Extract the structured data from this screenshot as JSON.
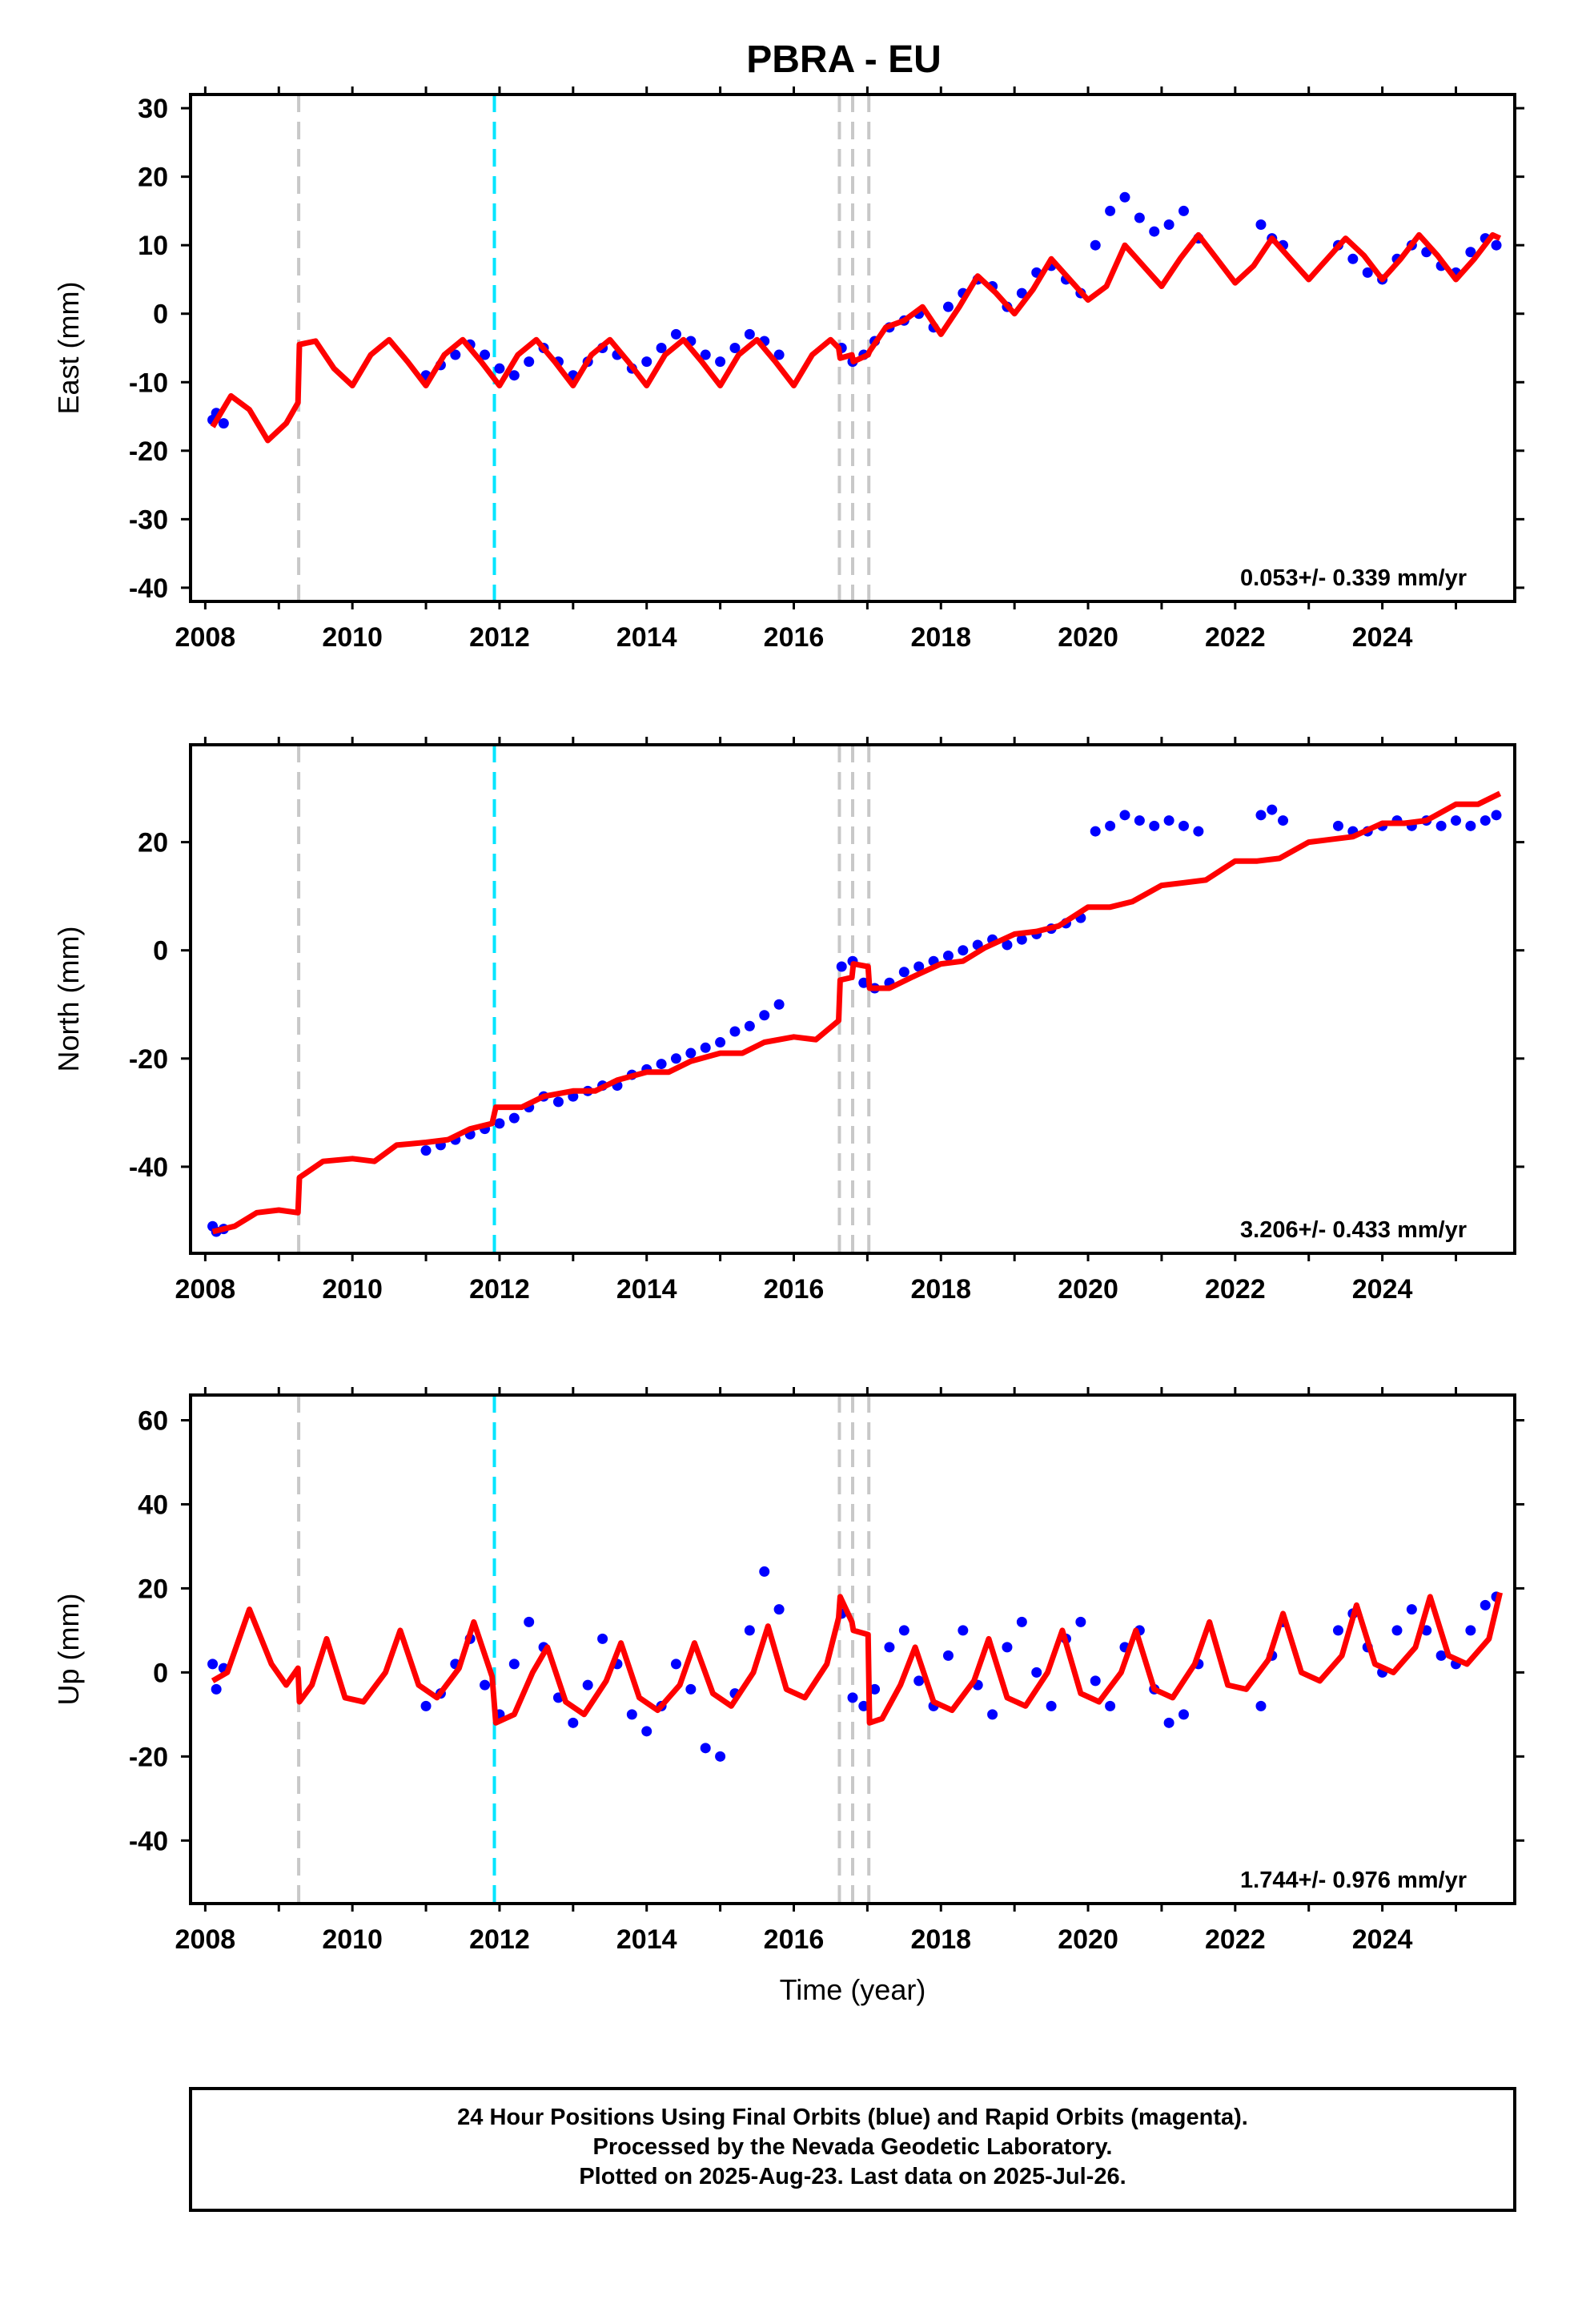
{
  "figure": {
    "title": "PBRA - EU",
    "notes": [
      "24 Hour Positions Using Final Orbits (blue) and Rapid Orbits (magenta).",
      "Processed by the Nevada Geodetic Laboratory.",
      "Plotted on 2025-Aug-23. Last data on 2025-Jul-26."
    ],
    "colors": {
      "points": "#0000ff",
      "model": "#ff0000",
      "event": "#c8c8c8",
      "equipment": "#00e5ff"
    }
  },
  "chart_data": [
    {
      "type": "scatter",
      "title": "",
      "xlabel": "",
      "ylabel": "East (mm)",
      "xlim": [
        2007.8,
        2025.8
      ],
      "ylim": [
        -42,
        32
      ],
      "xticks": [
        2008,
        2010,
        2012,
        2014,
        2016,
        2018,
        2020,
        2022,
        2024
      ],
      "yticks": [
        -40,
        -30,
        -20,
        -10,
        0,
        10,
        20,
        30
      ],
      "rate_text": "0.053+/- 0.339 mm/yr",
      "vlines_gray": [
        2009.27,
        2016.62,
        2016.8,
        2017.02
      ],
      "vlines_cyan": [
        2011.93
      ],
      "series": [
        {
          "kind": "points",
          "x": [
            2008.1,
            2008.15,
            2008.25,
            2011.0,
            2011.2,
            2011.4,
            2011.6,
            2011.8,
            2012.0,
            2012.2,
            2012.4,
            2012.6,
            2012.8,
            2013.0,
            2013.2,
            2013.4,
            2013.6,
            2013.8,
            2014.0,
            2014.2,
            2014.4,
            2014.6,
            2014.8,
            2015.0,
            2015.2,
            2015.4,
            2015.6,
            2015.8,
            2016.65,
            2016.8,
            2016.95,
            2017.1,
            2017.3,
            2017.5,
            2017.7,
            2017.9,
            2018.1,
            2018.3,
            2018.5,
            2018.7,
            2018.9,
            2019.1,
            2019.3,
            2019.5,
            2019.7,
            2019.9,
            2020.1,
            2020.3,
            2020.5,
            2020.7,
            2020.9,
            2021.1,
            2021.3,
            2021.5,
            2022.35,
            2022.5,
            2022.65,
            2023.4,
            2023.6,
            2023.8,
            2024.0,
            2024.2,
            2024.4,
            2024.6,
            2024.8,
            2025.0,
            2025.2,
            2025.4,
            2025.55
          ],
          "y": [
            -15.5,
            -14.5,
            -16,
            -9,
            -7.5,
            -6,
            -4.5,
            -6,
            -8,
            -9,
            -7,
            -5,
            -7,
            -9,
            -7,
            -5,
            -6,
            -8,
            -7,
            -5,
            -3,
            -4,
            -6,
            -7,
            -5,
            -3,
            -4,
            -6,
            -5,
            -7,
            -6,
            -4,
            -2,
            -1,
            0,
            -2,
            1,
            3,
            5,
            4,
            1,
            3,
            6,
            7,
            5,
            3,
            10,
            15,
            17,
            14,
            12,
            13,
            15,
            11,
            13,
            11,
            10,
            10,
            8,
            6,
            5,
            8,
            10,
            9,
            7,
            6,
            9,
            11,
            10
          ]
        },
        {
          "kind": "model",
          "x": [
            2008.1,
            2008.35,
            2008.6,
            2008.85,
            2009.1,
            2009.26,
            2009.28,
            2009.5,
            2009.75,
            2010.0,
            2010.25,
            2010.5,
            2010.75,
            2011.0,
            2011.25,
            2011.5,
            2011.75,
            2012.0,
            2012.25,
            2012.5,
            2012.75,
            2013.0,
            2013.25,
            2013.5,
            2013.75,
            2014.0,
            2014.25,
            2014.5,
            2014.75,
            2015.0,
            2015.25,
            2015.5,
            2015.75,
            2016.0,
            2016.25,
            2016.5,
            2016.61,
            2016.63,
            2016.79,
            2016.81,
            2017.01,
            2017.03,
            2017.25,
            2017.5,
            2017.75,
            2018.0,
            2018.25,
            2018.5,
            2018.75,
            2019.0,
            2019.25,
            2019.5,
            2019.75,
            2020.0,
            2020.25,
            2020.5,
            2020.75,
            2021.0,
            2021.25,
            2021.5,
            2021.75,
            2022.0,
            2022.25,
            2022.5,
            2022.75,
            2023.0,
            2023.25,
            2023.5,
            2023.75,
            2024.0,
            2024.25,
            2024.5,
            2024.75,
            2025.0,
            2025.25,
            2025.5,
            2025.6
          ],
          "y": [
            -16.5,
            -12,
            -14,
            -18.5,
            -16,
            -13,
            -4.5,
            -4,
            -8,
            -10.5,
            -6,
            -3.8,
            -7,
            -10.5,
            -6,
            -3.8,
            -7,
            -10.5,
            -6,
            -3.8,
            -7,
            -10.5,
            -6,
            -3.8,
            -7,
            -10.5,
            -6,
            -3.8,
            -7,
            -10.5,
            -6,
            -3.8,
            -7,
            -10.5,
            -6,
            -3.8,
            -5,
            -6.5,
            -6,
            -7,
            -6,
            -5.5,
            -2,
            -1,
            1,
            -3,
            1,
            5.5,
            3,
            0,
            3.5,
            8,
            5,
            2,
            4,
            10,
            7,
            4,
            8,
            11.5,
            8,
            4.5,
            7,
            11,
            8,
            5,
            8,
            11,
            8.5,
            5,
            8,
            11.5,
            8.5,
            5,
            8,
            11.5,
            11
          ]
        }
      ]
    },
    {
      "type": "scatter",
      "title": "",
      "xlabel": "",
      "ylabel": "North (mm)",
      "xlim": [
        2007.8,
        2025.8
      ],
      "ylim": [
        -56,
        38
      ],
      "xticks": [
        2008,
        2010,
        2012,
        2014,
        2016,
        2018,
        2020,
        2022,
        2024
      ],
      "yticks": [
        -40,
        -20,
        0,
        20
      ],
      "rate_text": "3.206+/- 0.433 mm/yr",
      "vlines_gray": [
        2009.27,
        2016.62,
        2016.8,
        2017.02
      ],
      "vlines_cyan": [
        2011.93
      ],
      "series": [
        {
          "kind": "points",
          "x": [
            2008.1,
            2008.15,
            2008.25,
            2011.0,
            2011.2,
            2011.4,
            2011.6,
            2011.8,
            2012.0,
            2012.2,
            2012.4,
            2012.6,
            2012.8,
            2013.0,
            2013.2,
            2013.4,
            2013.6,
            2013.8,
            2014.0,
            2014.2,
            2014.4,
            2014.6,
            2014.8,
            2015.0,
            2015.2,
            2015.4,
            2015.6,
            2015.8,
            2016.65,
            2016.8,
            2016.95,
            2017.1,
            2017.3,
            2017.5,
            2017.7,
            2017.9,
            2018.1,
            2018.3,
            2018.5,
            2018.7,
            2018.9,
            2019.1,
            2019.3,
            2019.5,
            2019.7,
            2019.9,
            2020.1,
            2020.3,
            2020.5,
            2020.7,
            2020.9,
            2021.1,
            2021.3,
            2021.5,
            2022.35,
            2022.5,
            2022.65,
            2023.4,
            2023.6,
            2023.8,
            2024.0,
            2024.2,
            2024.4,
            2024.6,
            2024.8,
            2025.0,
            2025.2,
            2025.4,
            2025.55
          ],
          "y": [
            -51,
            -52,
            -51.5,
            -37,
            -36,
            -35,
            -34,
            -33,
            -32,
            -31,
            -29,
            -27,
            -28,
            -27,
            -26,
            -25,
            -25,
            -23,
            -22,
            -21,
            -20,
            -19,
            -18,
            -17,
            -15,
            -14,
            -12,
            -10,
            -3,
            -2,
            -6,
            -7,
            -6,
            -4,
            -3,
            -2,
            -1,
            0,
            1,
            2,
            1,
            2,
            3,
            4,
            5,
            6,
            22,
            23,
            25,
            24,
            23,
            24,
            23,
            22,
            25,
            26,
            24,
            23,
            22,
            22,
            23,
            24,
            23,
            24,
            23,
            24,
            23,
            24,
            25
          ]
        },
        {
          "kind": "model",
          "x": [
            2008.1,
            2008.4,
            2008.7,
            2009.0,
            2009.26,
            2009.28,
            2009.6,
            2010.0,
            2010.3,
            2010.6,
            2011.0,
            2011.3,
            2011.6,
            2011.9,
            2011.95,
            2012.3,
            2012.6,
            2013.0,
            2013.3,
            2013.6,
            2014.0,
            2014.3,
            2014.6,
            2015.0,
            2015.3,
            2015.6,
            2016.0,
            2016.3,
            2016.61,
            2016.63,
            2016.79,
            2016.81,
            2017.01,
            2017.03,
            2017.3,
            2017.6,
            2018.0,
            2018.3,
            2018.6,
            2019.0,
            2019.3,
            2019.6,
            2020.0,
            2020.3,
            2020.6,
            2021.0,
            2021.3,
            2021.6,
            2022.0,
            2022.3,
            2022.6,
            2023.0,
            2023.3,
            2023.6,
            2024.0,
            2024.3,
            2024.6,
            2025.0,
            2025.3,
            2025.6
          ],
          "y": [
            -52,
            -51,
            -48.5,
            -48,
            -48.5,
            -42,
            -39,
            -38.5,
            -39,
            -36,
            -35.5,
            -35,
            -33,
            -32,
            -29,
            -29,
            -27,
            -26,
            -26,
            -24,
            -22.5,
            -22.5,
            -20.5,
            -19,
            -19,
            -17,
            -16,
            -16.5,
            -13,
            -5.5,
            -5,
            -2.5,
            -3,
            -7,
            -7,
            -5,
            -2.5,
            -2,
            0.5,
            3,
            3.5,
            4.5,
            8,
            8,
            9,
            12,
            12.5,
            13,
            16.5,
            16.5,
            17,
            20,
            20.5,
            21,
            23.5,
            23.5,
            24,
            27,
            27,
            29
          ]
        }
      ]
    },
    {
      "type": "scatter",
      "title": "",
      "xlabel": "Time (year)",
      "ylabel": "Up (mm)",
      "xlim": [
        2007.8,
        2025.8
      ],
      "ylim": [
        -55,
        66
      ],
      "xticks": [
        2008,
        2010,
        2012,
        2014,
        2016,
        2018,
        2020,
        2022,
        2024
      ],
      "yticks": [
        -40,
        -20,
        0,
        20,
        40,
        60
      ],
      "rate_text": "1.744+/- 0.976 mm/yr",
      "vlines_gray": [
        2009.27,
        2016.62,
        2016.8,
        2017.02
      ],
      "vlines_cyan": [
        2011.93
      ],
      "series": [
        {
          "kind": "points",
          "x": [
            2008.1,
            2008.15,
            2008.25,
            2011.0,
            2011.2,
            2011.4,
            2011.6,
            2011.8,
            2012.0,
            2012.2,
            2012.4,
            2012.6,
            2012.8,
            2013.0,
            2013.2,
            2013.4,
            2013.6,
            2013.8,
            2014.0,
            2014.2,
            2014.4,
            2014.6,
            2014.8,
            2015.0,
            2015.2,
            2015.4,
            2015.6,
            2015.8,
            2016.65,
            2016.8,
            2016.95,
            2017.1,
            2017.3,
            2017.5,
            2017.7,
            2017.9,
            2018.1,
            2018.3,
            2018.5,
            2018.7,
            2018.9,
            2019.1,
            2019.3,
            2019.5,
            2019.7,
            2019.9,
            2020.1,
            2020.3,
            2020.5,
            2020.7,
            2020.9,
            2021.1,
            2021.3,
            2021.5,
            2022.35,
            2022.5,
            2022.65,
            2023.4,
            2023.6,
            2023.8,
            2024.0,
            2024.2,
            2024.4,
            2024.6,
            2024.8,
            2025.0,
            2025.2,
            2025.4,
            2025.55
          ],
          "y": [
            2,
            -4,
            1,
            -8,
            -5,
            2,
            8,
            -3,
            -10,
            2,
            12,
            6,
            -6,
            -12,
            -3,
            8,
            2,
            -10,
            -14,
            -8,
            2,
            -4,
            -18,
            -20,
            -5,
            10,
            24,
            15,
            14,
            -6,
            -8,
            -4,
            6,
            10,
            -2,
            -8,
            4,
            10,
            -3,
            -10,
            6,
            12,
            0,
            -8,
            8,
            12,
            -2,
            -8,
            6,
            10,
            -4,
            -12,
            -10,
            2,
            -8,
            4,
            12,
            10,
            14,
            6,
            0,
            10,
            15,
            10,
            4,
            2,
            10,
            16,
            18
          ]
        },
        {
          "kind": "model",
          "x": [
            2008.1,
            2008.3,
            2008.6,
            2008.9,
            2009.1,
            2009.26,
            2009.28,
            2009.45,
            2009.65,
            2009.9,
            2010.15,
            2010.45,
            2010.65,
            2010.9,
            2011.15,
            2011.45,
            2011.65,
            2011.9,
            2011.95,
            2012.2,
            2012.45,
            2012.65,
            2012.9,
            2013.15,
            2013.45,
            2013.65,
            2013.9,
            2014.15,
            2014.45,
            2014.65,
            2014.9,
            2015.15,
            2015.45,
            2015.65,
            2015.9,
            2016.15,
            2016.45,
            2016.61,
            2016.63,
            2016.79,
            2016.81,
            2017.01,
            2017.03,
            2017.2,
            2017.45,
            2017.65,
            2017.9,
            2018.15,
            2018.45,
            2018.65,
            2018.9,
            2019.15,
            2019.45,
            2019.65,
            2019.9,
            2020.15,
            2020.45,
            2020.65,
            2020.9,
            2021.15,
            2021.45,
            2021.65,
            2021.9,
            2022.15,
            2022.45,
            2022.65,
            2022.9,
            2023.15,
            2023.45,
            2023.65,
            2023.9,
            2024.15,
            2024.45,
            2024.65,
            2024.9,
            2025.15,
            2025.45,
            2025.6
          ],
          "y": [
            -2,
            0,
            15,
            2,
            -3,
            1,
            -7,
            -3,
            8,
            -6,
            -7,
            0,
            10,
            -3,
            -6,
            1,
            12,
            -1,
            -12,
            -10,
            0,
            6,
            -7,
            -10,
            -2,
            7,
            -6,
            -9,
            -3,
            7,
            -5,
            -8,
            0,
            11,
            -4,
            -6,
            2,
            13,
            18,
            12,
            10,
            9,
            -12,
            -11,
            -3,
            6,
            -7,
            -9,
            -2,
            8,
            -6,
            -8,
            0,
            10,
            -5,
            -7,
            0,
            10,
            -4,
            -6,
            2,
            12,
            -3,
            -4,
            3,
            14,
            0,
            -2,
            4,
            16,
            2,
            0,
            6,
            18,
            4,
            2,
            8,
            19
          ]
        }
      ]
    }
  ]
}
